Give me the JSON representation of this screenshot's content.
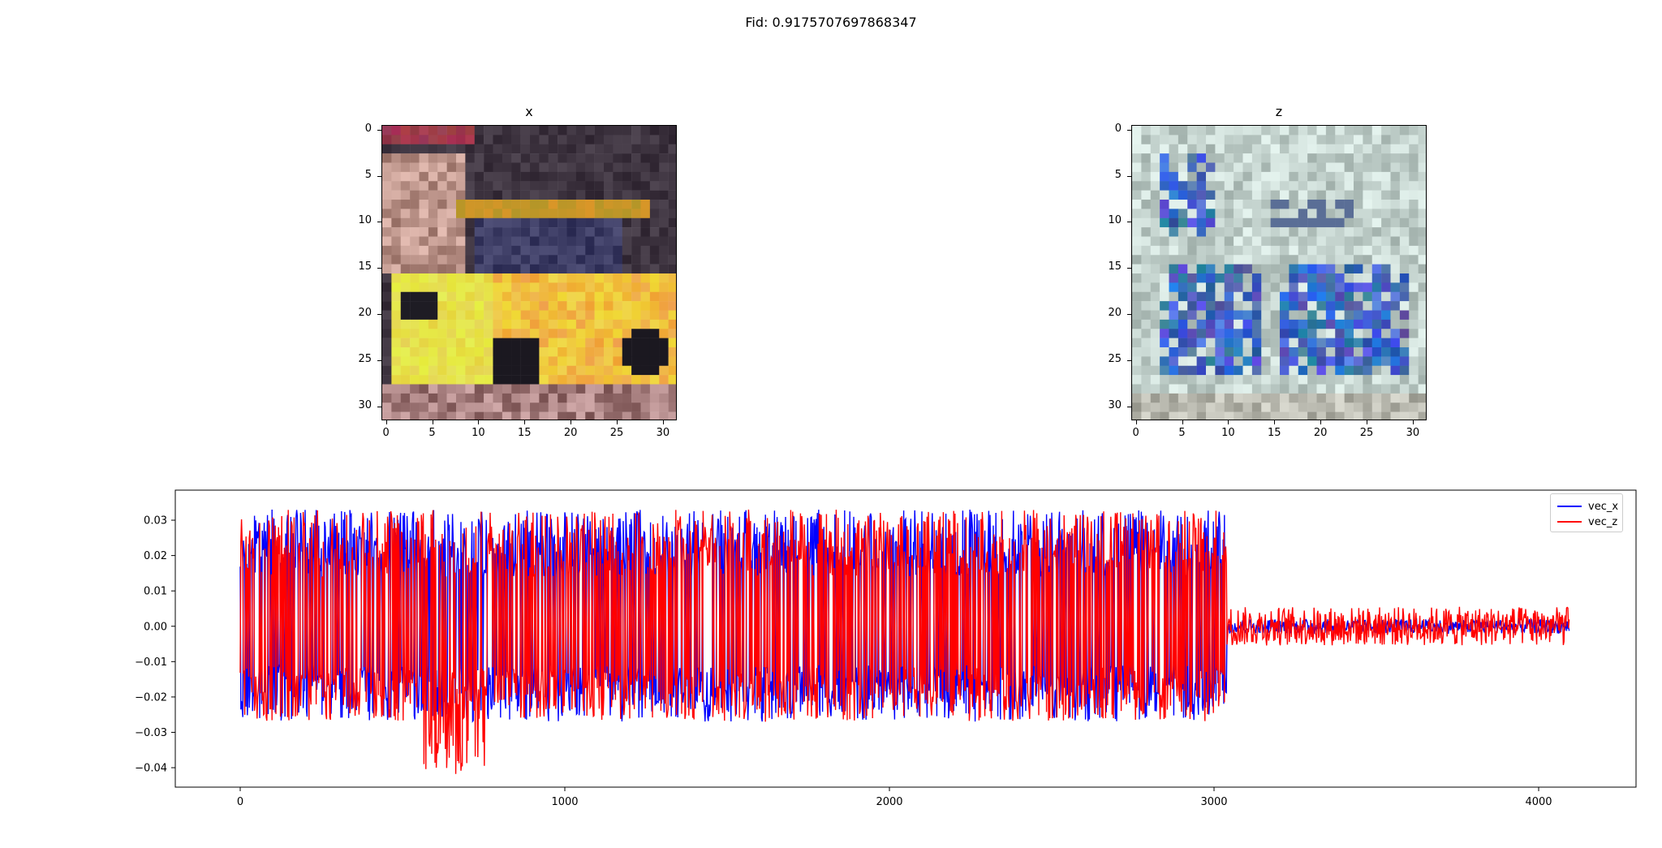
{
  "suptitle": "Fid: 0.9175707697868347",
  "images": [
    {
      "id": "x",
      "title": "x",
      "ticks": [
        0,
        5,
        10,
        15,
        20,
        25,
        30
      ]
    },
    {
      "id": "z",
      "title": "z",
      "ticks": [
        0,
        5,
        10,
        15,
        20,
        25,
        30
      ]
    }
  ],
  "chart_data": {
    "type": "line",
    "title": "",
    "xlabel": "",
    "ylabel": "",
    "xlim": [
      -200,
      4300
    ],
    "ylim": [
      -0.0455,
      0.0385
    ],
    "xticks": [
      0,
      1000,
      2000,
      3000,
      4000
    ],
    "yticks": [
      -0.04,
      -0.03,
      -0.02,
      -0.01,
      0.0,
      0.01,
      0.02,
      0.03
    ],
    "ytick_labels": [
      "−0.04",
      "−0.03",
      "−0.02",
      "−0.01",
      "0.00",
      "0.01",
      "0.02",
      "0.03"
    ],
    "legend": "top-right",
    "series": [
      {
        "name": "vec_x",
        "color": "#0000ff"
      },
      {
        "name": "vec_z",
        "color": "#ff0000"
      }
    ]
  }
}
